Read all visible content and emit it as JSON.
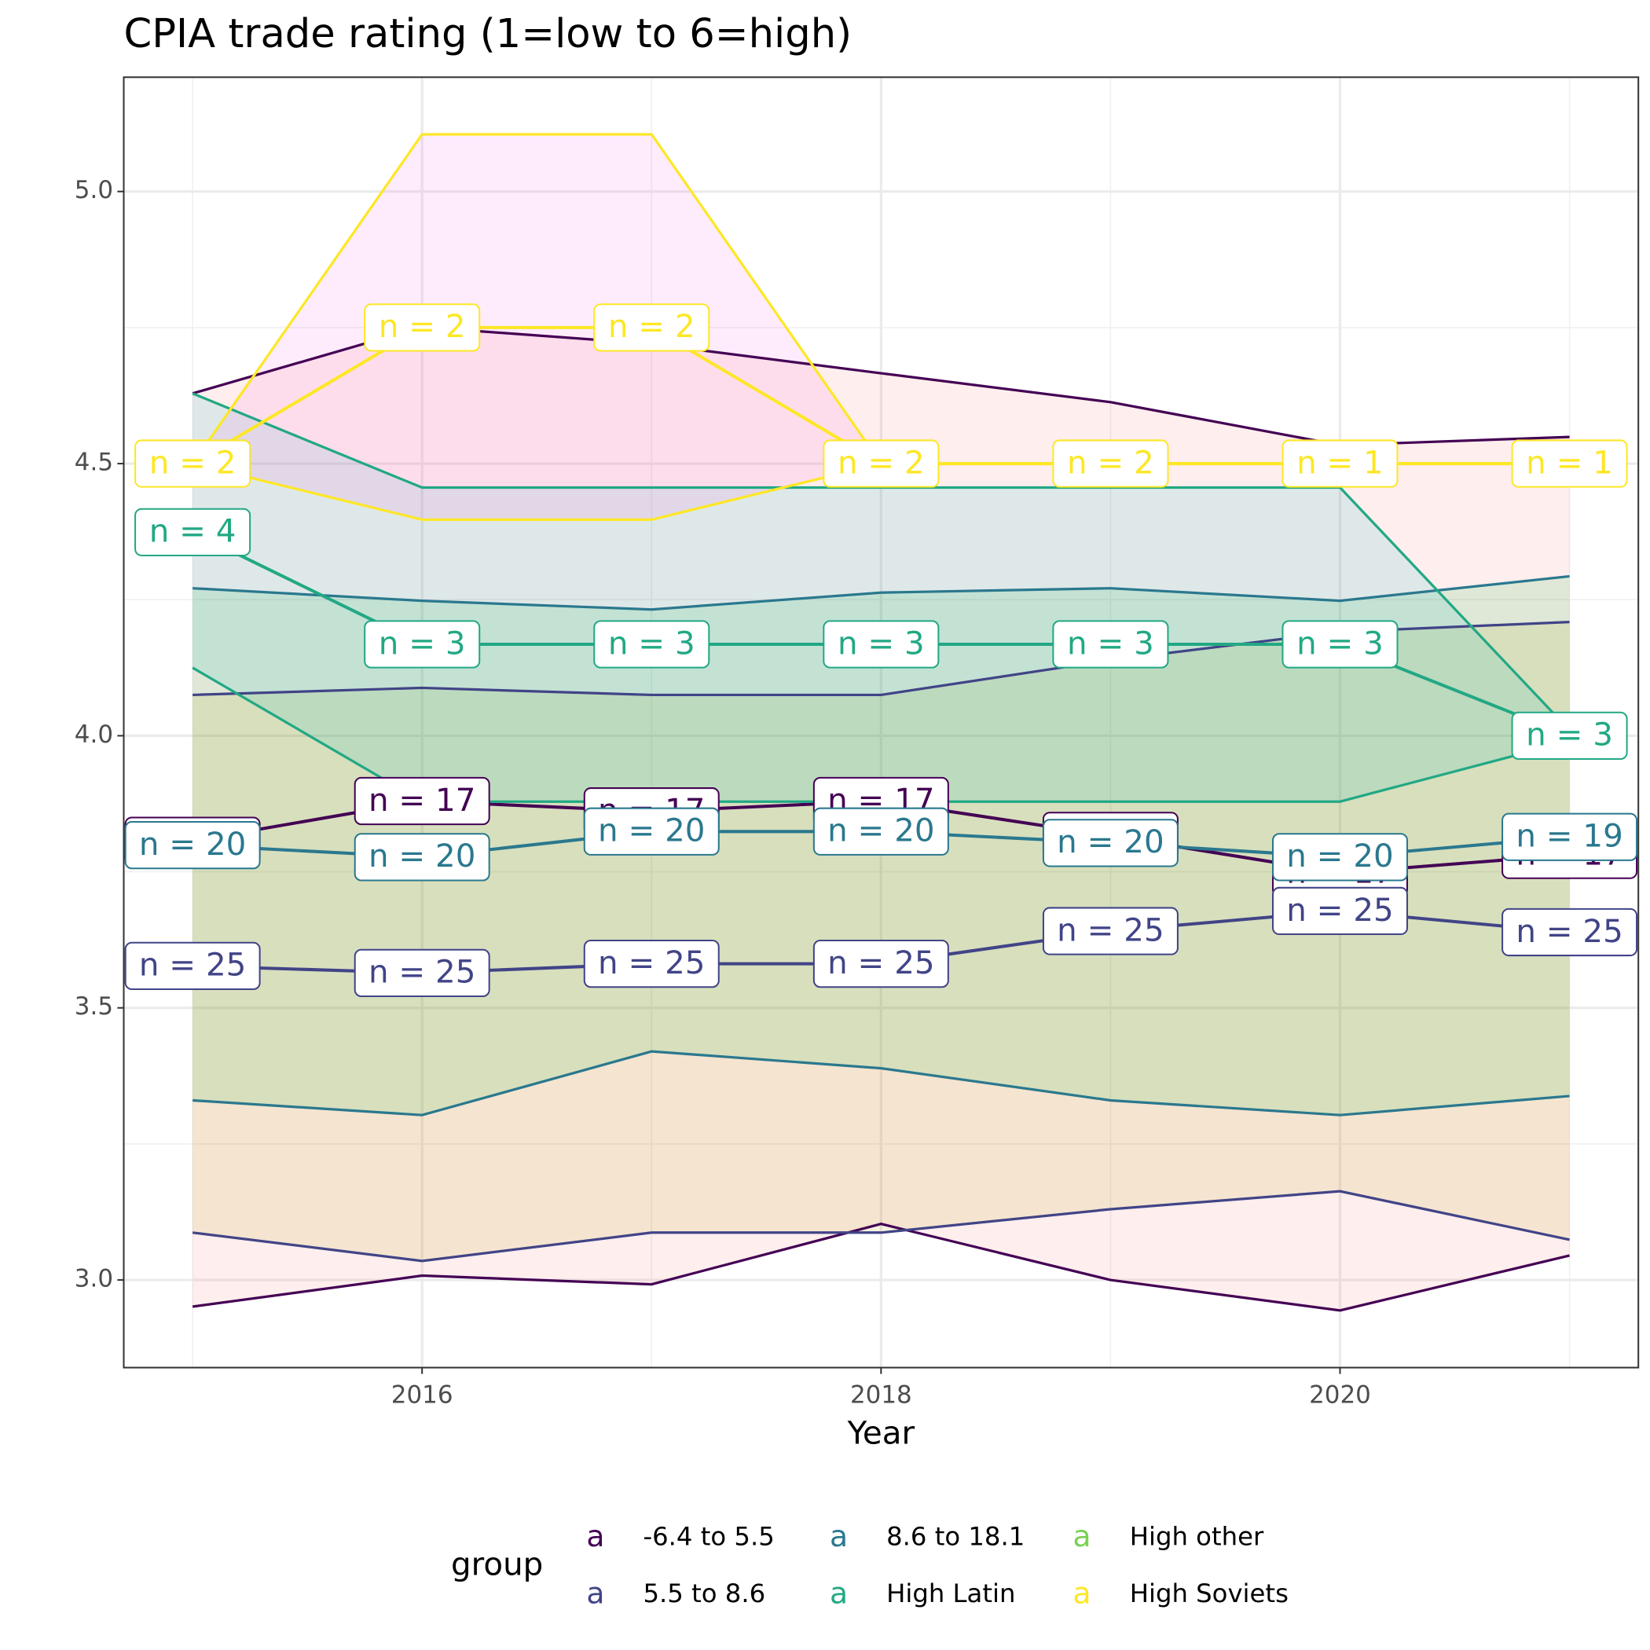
{
  "chart_data": {
    "type": "line",
    "title": "CPIA trade rating (1=low to 6=high)",
    "x_label": "Year",
    "legend_title": "group",
    "x": [
      2015,
      2016,
      2017,
      2018,
      2019,
      2020,
      2021
    ],
    "xlim": [
      2014.7,
      2021.3
    ],
    "xticks": [
      2016,
      2018,
      2020
    ],
    "ylim": [
      2.839,
      5.21
    ],
    "yticks": [
      {
        "value": 3,
        "label": "3.0"
      },
      3.5,
      {
        "value": 4,
        "label": "4.0"
      },
      4.5,
      {
        "value": 5,
        "label": "5.0"
      }
    ],
    "grid": true,
    "legend_position": "bottom",
    "legend_symbol": "a",
    "series": [
      {
        "name": "-6.4 to 5.5",
        "color": "#440154",
        "fill": "#F8766D",
        "values": [
          3.807,
          3.88,
          3.861,
          3.88,
          3.816,
          3.748,
          3.781
        ],
        "upper": [
          4.629,
          4.751,
          4.72,
          4.666,
          4.613,
          4.534,
          4.549
        ],
        "lower": [
          2.951,
          3.008,
          2.992,
          3.103,
          3.0,
          2.944,
          3.045
        ],
        "labels": [
          "n = 17",
          "n = 17",
          "n = 17",
          "n = 17",
          "n = 17",
          "n = 17",
          "n = 17"
        ]
      },
      {
        "name": "5.5 to 8.6",
        "color": "#414487",
        "fill": "#B79F00",
        "values": [
          3.577,
          3.564,
          3.581,
          3.581,
          3.641,
          3.678,
          3.639
        ],
        "upper": [
          4.075,
          4.088,
          4.075,
          4.075,
          4.139,
          4.191,
          4.209
        ],
        "lower": [
          3.087,
          3.035,
          3.087,
          3.087,
          3.13,
          3.163,
          3.074
        ],
        "labels": [
          "n = 25",
          "n = 25",
          "n = 25",
          "n = 25",
          "n = 25",
          "n = 25",
          "n = 25"
        ]
      },
      {
        "name": "8.6 to 18.1",
        "color": "#2A788E",
        "fill": "#00BA38",
        "values": [
          3.799,
          3.777,
          3.824,
          3.824,
          3.803,
          3.777,
          3.814
        ],
        "upper": [
          4.271,
          4.248,
          4.232,
          4.263,
          4.271,
          4.248,
          4.293
        ],
        "lower": [
          3.33,
          3.303,
          3.42,
          3.389,
          3.33,
          3.303,
          3.338
        ],
        "labels": [
          "n = 20",
          "n = 20",
          "n = 20",
          "n = 20",
          "n = 20",
          "n = 20",
          "n = 19"
        ]
      },
      {
        "name": "High Latin",
        "color": "#22A884",
        "fill": "#00BFC4",
        "values": [
          4.374,
          4.168,
          4.168,
          4.168,
          4.168,
          4.168,
          4.0
        ],
        "upper": [
          4.629,
          4.456,
          4.456,
          4.456,
          4.456,
          4.456,
          4.01
        ],
        "lower": [
          4.125,
          3.879,
          3.879,
          3.879,
          3.879,
          3.879,
          3.99
        ],
        "labels": [
          "n = 4",
          "n = 3",
          "n = 3",
          "n = 3",
          "n = 3",
          "n = 3",
          "n = 3"
        ]
      },
      {
        "name": "High other",
        "color": "#7AD151",
        "fill": "#619CFF",
        "values": [
          null,
          null,
          null,
          null,
          null,
          null,
          null
        ],
        "upper": [
          null,
          null,
          null,
          null,
          null,
          null,
          null
        ],
        "lower": [
          null,
          null,
          null,
          null,
          null,
          null,
          null
        ],
        "labels": [
          null,
          null,
          null,
          null,
          null,
          null,
          null
        ]
      },
      {
        "name": "High Soviets",
        "color": "#FDE725",
        "fill": "#F564E3",
        "values": [
          4.5,
          4.75,
          4.75,
          4.5,
          4.5,
          4.5,
          4.5
        ],
        "upper": [
          4.5,
          5.105,
          5.105,
          4.5,
          4.5,
          4.5,
          4.5
        ],
        "lower": [
          4.5,
          4.397,
          4.397,
          4.5,
          4.5,
          4.5,
          4.5
        ],
        "labels": [
          "n = 2",
          "n = 2",
          "n = 2",
          "n = 2",
          "n = 2",
          "n = 1",
          "n = 1"
        ]
      }
    ]
  }
}
